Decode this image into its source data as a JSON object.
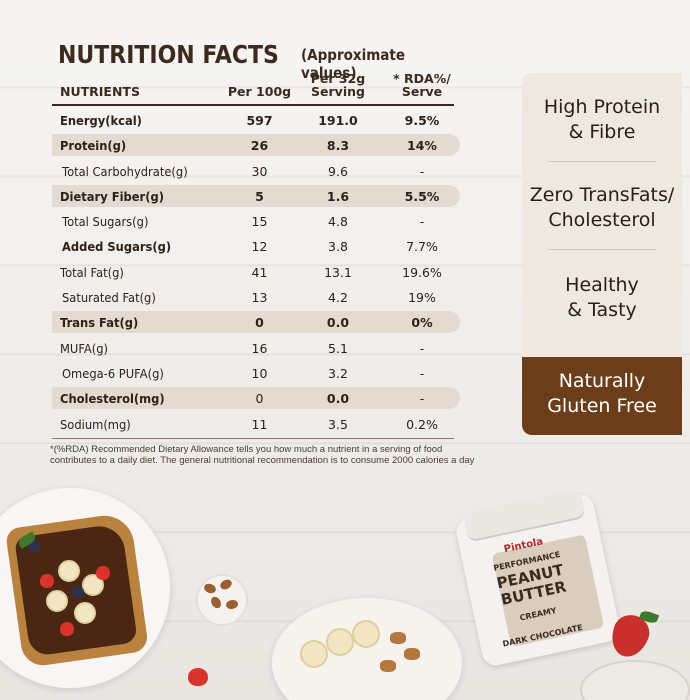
{
  "title": "NUTRITION FACTS",
  "subtitle": "(Approximate values)",
  "table": {
    "headers": {
      "nutrients": "NUTRIENTS",
      "per100": "Per 100g",
      "serving": "Per 32g\nServing",
      "rda": "* RDA%/\nServe"
    },
    "rows": [
      {
        "name": "Energy(kcal)",
        "per100": "597",
        "serving": "191.0",
        "rda": "9.5%"
      },
      {
        "name": "Protein(g)",
        "per100": "26",
        "serving": "8.3",
        "rda": "14%"
      },
      {
        "name": "Total Carbohydrate(g)",
        "per100": "30",
        "serving": "9.6",
        "rda": "-"
      },
      {
        "name": "Dietary Fiber(g)",
        "per100": "5",
        "serving": "1.6",
        "rda": "5.5%"
      },
      {
        "name": "Total Sugars(g)",
        "per100": "15",
        "serving": "4.8",
        "rda": "-"
      },
      {
        "name": "Added Sugars(g)",
        "per100": "12",
        "serving": "3.8",
        "rda": "7.7%"
      },
      {
        "name": "Total Fat(g)",
        "per100": "41",
        "serving": "13.1",
        "rda": "19.6%"
      },
      {
        "name": "Saturated Fat(g)",
        "per100": "13",
        "serving": "4.2",
        "rda": "19%"
      },
      {
        "name": "Trans Fat(g)",
        "per100": "0",
        "serving": "0.0",
        "rda": "0%"
      },
      {
        "name": "MUFA(g)",
        "per100": "16",
        "serving": "5.1",
        "rda": "-"
      },
      {
        "name": "Omega-6 PUFA(g)",
        "per100": "10",
        "serving": "3.2",
        "rda": "-"
      },
      {
        "name": "Cholesterol(mg)",
        "per100": "0",
        "serving": "0.0",
        "rda": "-"
      },
      {
        "name": "Sodium(mg)",
        "per100": "11",
        "serving": "3.5",
        "rda": "0.2%"
      }
    ]
  },
  "footnote": "*(%RDA) Recommended Dietary Allowance tells you how much a nutrient in a serving of food contributes to a daily diet. The general nutritional recommendation is to consume 2000 calories a day",
  "features": [
    {
      "text": "High Protein\n& Fibre"
    },
    {
      "text": "Zero TransFats/\nCholesterol"
    },
    {
      "text": "Healthy\n& Tasty"
    },
    {
      "text": "Naturally\nGluten Free"
    }
  ],
  "product": {
    "brand": "Pintola",
    "line": "PERFORMANCE",
    "name": "PEANUT\nBUTTER",
    "variant": "CREAMY",
    "flavor": "DARK CHOCOLATE"
  },
  "colors": {
    "brown_dark": "#3d2a1c",
    "shade": "#e4dbd0",
    "accent_brown": "#6b3d18"
  }
}
